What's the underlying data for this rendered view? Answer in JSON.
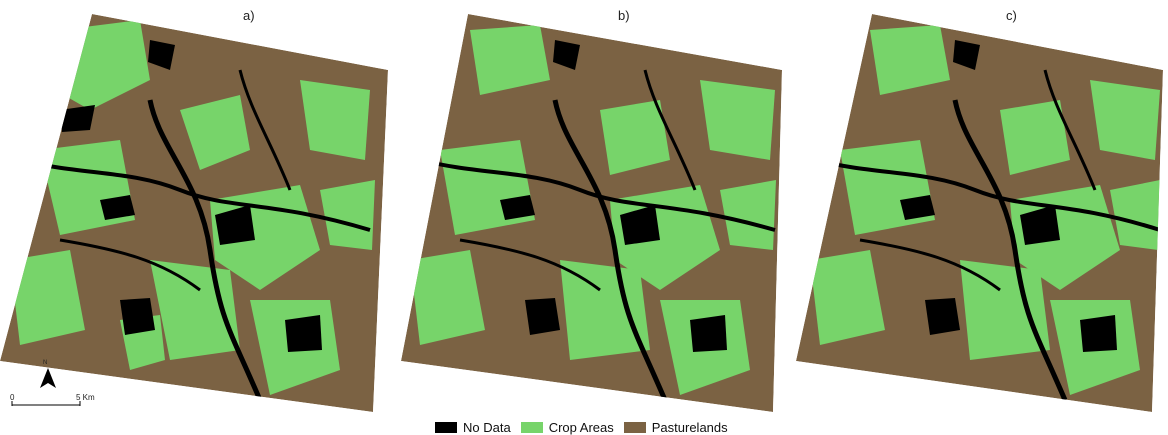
{
  "panels": [
    {
      "label": "a)"
    },
    {
      "label": "b)"
    },
    {
      "label": "c)"
    }
  ],
  "legend": {
    "items": [
      {
        "label": "No Data",
        "color": "#000000"
      },
      {
        "label": "Crop Areas",
        "color": "#77d46a"
      },
      {
        "label": "Pasturelands",
        "color": "#7b6243"
      }
    ]
  },
  "scale_bar": {
    "north_label": "N",
    "start_label": "0",
    "end_label": "5 Km"
  },
  "colors": {
    "crop": "#77d46a",
    "pasture": "#7b6243",
    "nodata": "#000000"
  }
}
